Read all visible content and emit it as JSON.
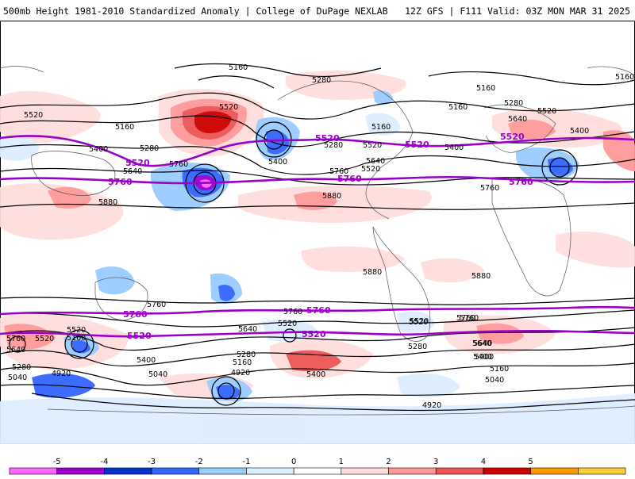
{
  "header": {
    "title": "500mb Height 1981-2010 Standardized Anomaly | College of DuPage NEXLAB",
    "run_info": "12Z GFS | F111 Valid: 03Z MON MAR 31 2025"
  },
  "colorbar": {
    "ticks": [
      "-5",
      "-4",
      "-3",
      "-2",
      "-1",
      "0",
      "1",
      "2",
      "3",
      "4",
      "5"
    ],
    "colors": [
      "#ff66ff",
      "#9900cc",
      "#0033cc",
      "#3366ff",
      "#99ccff",
      "#ddeeff",
      "#ffffff",
      "#ffdddd",
      "#ff9999",
      "#ee5555",
      "#cc0000",
      "#ff9900",
      "#ffcc33"
    ]
  },
  "map": {
    "black_contour_labels": [
      "5160",
      "5280",
      "5160",
      "5520",
      "5160",
      "5400",
      "5280",
      "5520",
      "5640",
      "5400",
      "5760",
      "5880",
      "5280",
      "5520",
      "5160",
      "5400",
      "5640",
      "5760",
      "5160",
      "5280",
      "5520",
      "5640",
      "5400",
      "5160",
      "5760",
      "5520",
      "5880",
      "5880",
      "5880",
      "5760",
      "5760",
      "5760",
      "5640",
      "5520",
      "5520",
      "5520",
      "5760",
      "5640",
      "5520",
      "5160",
      "5400",
      "5640",
      "5280",
      "5400",
      "5040",
      "4920",
      "5280",
      "5160",
      "4920",
      "5400",
      "5040",
      "5520",
      "5280",
      "5760",
      "5640",
      "5400",
      "5160",
      "5040",
      "4920"
    ],
    "magenta_contour_labels": [
      "5520",
      "5520",
      "5520",
      "5520",
      "5760",
      "5760",
      "5760",
      "5760",
      "5760",
      "5520",
      "5520"
    ]
  }
}
